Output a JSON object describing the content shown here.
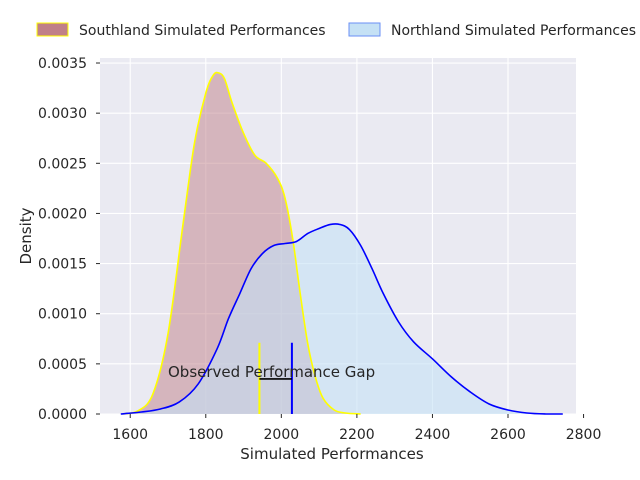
{
  "chart_data": {
    "type": "area",
    "title": "",
    "xlabel": "Simulated Performances",
    "ylabel": "Density",
    "xlim": [
      1520,
      2780
    ],
    "ylim": [
      0,
      0.00355
    ],
    "grid": true,
    "legend_position": "top",
    "x_ticks": [
      1600,
      1800,
      2000,
      2200,
      2400,
      2600,
      2800
    ],
    "x_tick_labels": [
      "1600",
      "1800",
      "2000",
      "2200",
      "2400",
      "2600",
      "2800"
    ],
    "y_ticks": [
      0,
      0.0005,
      0.001,
      0.0015,
      0.002,
      0.0025,
      0.003,
      0.0035
    ],
    "y_tick_labels": [
      "0.0000",
      "0.0005",
      "0.0010",
      "0.0015",
      "0.0020",
      "0.0025",
      "0.0030",
      "0.0035"
    ],
    "series": [
      {
        "name": "Southland Simulated Performances",
        "fill_color": "#c08088",
        "line_color": "#ffff00",
        "x": [
          1580,
          1620,
          1660,
          1700,
          1740,
          1770,
          1800,
          1820,
          1835,
          1850,
          1870,
          1900,
          1930,
          1960,
          1990,
          2010,
          2030,
          2050,
          2070,
          2090,
          2110,
          2140,
          2170,
          2210
        ],
        "y": [
          0,
          3e-05,
          0.0002,
          0.0008,
          0.0019,
          0.0027,
          0.0032,
          0.00338,
          0.0034,
          0.00334,
          0.0031,
          0.0028,
          0.00258,
          0.0025,
          0.00235,
          0.00215,
          0.00175,
          0.0012,
          0.0007,
          0.00037,
          0.00016,
          4e-05,
          1e-05,
          0
        ]
      },
      {
        "name": "Northland Simulated Performances",
        "fill_color": "#c5e1f5",
        "line_color": "#0000ff",
        "x": [
          1575,
          1630,
          1680,
          1730,
          1780,
          1830,
          1860,
          1890,
          1920,
          1950,
          1980,
          2010,
          2040,
          2070,
          2100,
          2130,
          2155,
          2180,
          2210,
          2240,
          2270,
          2310,
          2350,
          2400,
          2450,
          2500,
          2550,
          2600,
          2650,
          2700,
          2745
        ],
        "y": [
          0,
          2e-05,
          5e-05,
          0.00012,
          0.0003,
          0.00065,
          0.00095,
          0.0012,
          0.00145,
          0.0016,
          0.00168,
          0.0017,
          0.00172,
          0.0018,
          0.00185,
          0.00189,
          0.00189,
          0.00184,
          0.00168,
          0.00145,
          0.0012,
          0.00092,
          0.00072,
          0.00055,
          0.00037,
          0.00022,
          0.0001,
          4e-05,
          1e-05,
          0,
          0
        ]
      }
    ],
    "annotations": [
      {
        "text": "Observed Performance Gap",
        "x": 1700,
        "y": 0.00042,
        "gap_from": 1942,
        "gap_to": 2028,
        "gap_y": 0.00035,
        "marker_top": 0.00071,
        "marker_colors": [
          "#ffff00",
          "#0000ff"
        ]
      }
    ]
  },
  "colors": {
    "plot_background": "#eaeaf2",
    "grid": "#ffffff",
    "text": "#262626"
  }
}
